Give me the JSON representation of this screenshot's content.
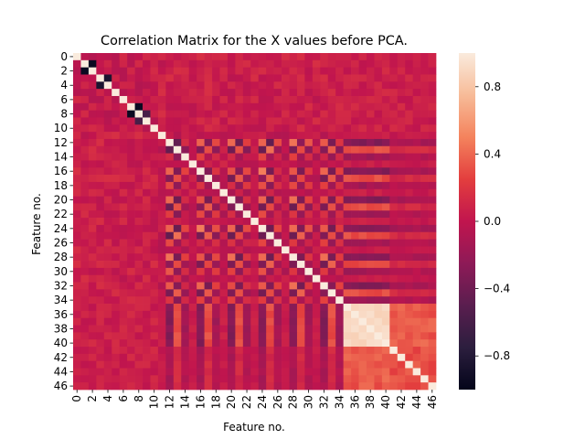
{
  "chart_data": {
    "type": "heatmap",
    "title": "Correlation Matrix for the X values before PCA.",
    "xlabel": "Feature no.",
    "ylabel": "Feature no.",
    "n": 47,
    "tick_labels": [
      "0",
      "2",
      "4",
      "6",
      "8",
      "10",
      "12",
      "14",
      "16",
      "18",
      "20",
      "22",
      "24",
      "26",
      "28",
      "30",
      "32",
      "34",
      "36",
      "38",
      "40",
      "42",
      "44",
      "46"
    ],
    "colorbar": {
      "vmin": -1.0,
      "vmax": 1.0,
      "ticks": [
        -0.8,
        -0.4,
        0.0,
        0.4,
        0.8
      ],
      "tick_labels": [
        "−0.8",
        "−0.4",
        "0.0",
        "0.4",
        "0.8"
      ]
    },
    "blocks": [
      {
        "name": "features 0-10",
        "range": [
          0,
          10
        ],
        "background": 0.0
      },
      {
        "name": "features 11-34",
        "range": [
          11,
          34
        ],
        "pattern_amplitude": 0.7
      },
      {
        "name": "features 35-40",
        "range": [
          35,
          40
        ],
        "within_correlation": 0.9,
        "with_features_41_46": 0.35
      },
      {
        "name": "features 41-46",
        "range": [
          41,
          46
        ],
        "within_correlation": 0.3
      }
    ],
    "strong_pairs": [
      {
        "i": 1,
        "j": 2,
        "value": -0.95
      },
      {
        "i": 3,
        "j": 4,
        "value": -0.85
      },
      {
        "i": 7,
        "j": 8,
        "value": -0.95
      },
      {
        "i": 8,
        "j": 9,
        "value": -0.6
      }
    ],
    "diagonal": 1.0
  }
}
